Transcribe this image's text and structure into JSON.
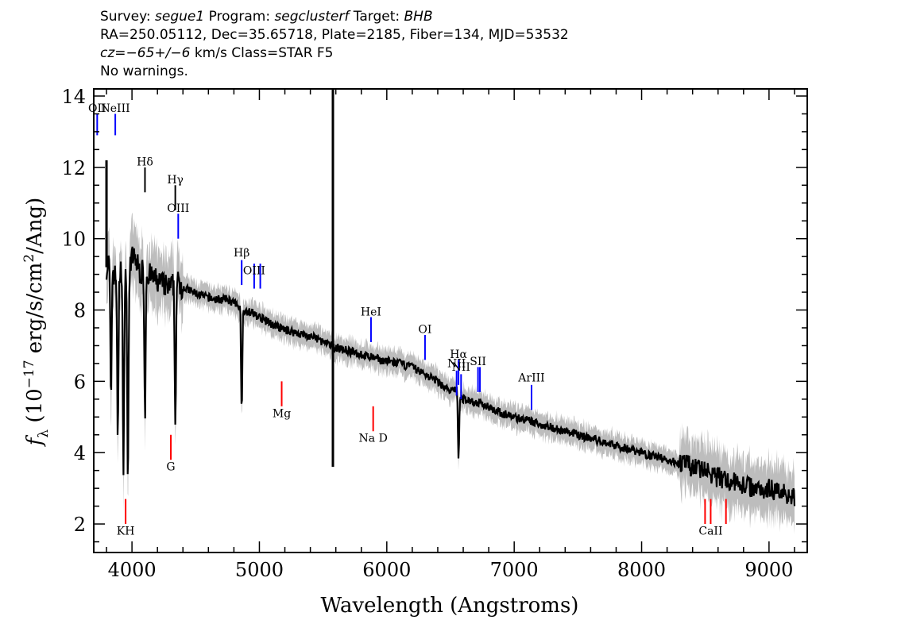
{
  "header": {
    "line1": {
      "survey_label": "Survey: ",
      "survey": "segue1",
      "program_label": " Program: ",
      "program": "segclusterf",
      "target_label": " Target: ",
      "target": "BHB"
    },
    "line2": "RA=250.05112, Dec=35.65718, Plate=2185, Fiber=134, MJD=53532",
    "line3": {
      "cz_label": "cz",
      "cz_value": "=−65+/−6",
      "rest": " km/s Class=STAR F5"
    },
    "line4": "No warnings."
  },
  "chart_data": {
    "type": "line",
    "xlabel": "Wavelength (Angstroms)",
    "ylabel": "fλ (10⁻¹⁷ erg/s/cm²/Ang)",
    "ylabel_parts": {
      "f": "f",
      "lambda": "λ",
      "open": " (10",
      "exp1": "−17",
      "mid": " erg/s/cm",
      "exp2": "2",
      "close": "/Ang)"
    },
    "xlim": [
      3700,
      9300
    ],
    "ylim": [
      1.2,
      14.2
    ],
    "xticks": [
      4000,
      5000,
      6000,
      7000,
      8000,
      9000
    ],
    "yticks": [
      2,
      4,
      6,
      8,
      10,
      12,
      14
    ],
    "x_minor_step": 200,
    "y_minor_step": 0.5,
    "series": [
      {
        "color": "#000000",
        "x": [
          3800,
          3830,
          3860,
          3890,
          3920,
          3950,
          3980,
          4010,
          4040,
          4070,
          4100,
          4130,
          4160,
          4200,
          4250,
          4300,
          4340,
          4380,
          4420,
          4480,
          4550,
          4650,
          4750,
          4800,
          4830,
          4860,
          4880,
          4950,
          5050,
          5150,
          5250,
          5350,
          5450,
          5550,
          5650,
          5750,
          5850,
          5950,
          6100,
          6200,
          6300,
          6400,
          6500,
          6550,
          6562,
          6580,
          6620,
          6700,
          6800,
          6900,
          7000,
          7100,
          7200,
          7300,
          7400,
          7500,
          7600,
          7700,
          7800,
          7900,
          8000,
          8100,
          8200,
          8300,
          8400,
          8500,
          8600,
          8700,
          8800,
          8900,
          9000,
          9100,
          9200
        ],
        "y": [
          9.2,
          9.4,
          9.0,
          8.8,
          9.2,
          9.0,
          9.3,
          9.5,
          9.3,
          9.0,
          9.2,
          9.0,
          8.9,
          8.8,
          8.7,
          8.6,
          8.8,
          8.7,
          8.6,
          8.5,
          8.4,
          8.3,
          8.3,
          8.2,
          8.1,
          8.2,
          8.0,
          7.9,
          7.7,
          7.5,
          7.4,
          7.3,
          7.2,
          7.0,
          6.9,
          6.8,
          6.7,
          6.6,
          6.5,
          6.4,
          6.2,
          6.0,
          5.7,
          5.8,
          5.6,
          5.5,
          5.5,
          5.4,
          5.3,
          5.1,
          5.0,
          4.9,
          4.8,
          4.7,
          4.6,
          4.5,
          4.4,
          4.3,
          4.2,
          4.1,
          4.0,
          3.9,
          3.8,
          3.7,
          3.6,
          3.5,
          3.3,
          3.2,
          3.1,
          3.0,
          3.0,
          2.9,
          2.8
        ]
      }
    ],
    "absorption_features": [
      {
        "x": 3835,
        "y": 5.3
      },
      {
        "x": 3889,
        "y": 4.4
      },
      {
        "x": 3933,
        "y": 3.1
      },
      {
        "x": 3968,
        "y": 2.9
      },
      {
        "x": 4102,
        "y": 5.1
      },
      {
        "x": 4340,
        "y": 4.8
      },
      {
        "x": 4861,
        "y": 5.2
      },
      {
        "x": 6563,
        "y": 3.9
      }
    ],
    "emission_spikes": [
      {
        "x": 3800,
        "y": 12.2
      },
      {
        "x": 5577,
        "y": 14.2
      },
      {
        "x": 5577,
        "y": 3.6
      }
    ],
    "line_labels": [
      {
        "text": "OII",
        "x": 3727,
        "top": 13.5,
        "bottom": 12.9,
        "color": "blue",
        "label_y": 13.55
      },
      {
        "text": "NeIII",
        "x": 3869,
        "top": 13.5,
        "bottom": 12.9,
        "color": "blue",
        "label_y": 13.55
      },
      {
        "text": "Hδ",
        "x": 4102,
        "top": 12.0,
        "bottom": 11.3,
        "color": "black",
        "label_y": 12.05
      },
      {
        "text": "Hγ",
        "x": 4340,
        "top": 11.5,
        "bottom": 10.8,
        "color": "black",
        "label_y": 11.55
      },
      {
        "text": "OIII",
        "x": 4363,
        "top": 10.7,
        "bottom": 10.0,
        "color": "blue",
        "label_y": 10.75
      },
      {
        "text": "Hβ",
        "x": 4861,
        "top": 9.4,
        "bottom": 8.7,
        "color": "blue",
        "label_y": 9.5
      },
      {
        "text": "OIII",
        "x": 4959,
        "top": 9.3,
        "bottom": 8.6,
        "color": "blue",
        "label_y": 9.0
      },
      {
        "text": "",
        "x": 5007,
        "top": 9.3,
        "bottom": 8.6,
        "color": "blue",
        "label_y": 9.0
      },
      {
        "text": "HeI",
        "x": 5876,
        "top": 7.8,
        "bottom": 7.1,
        "color": "blue",
        "label_y": 7.85
      },
      {
        "text": "OI",
        "x": 6300,
        "top": 7.3,
        "bottom": 6.6,
        "color": "blue",
        "label_y": 7.35
      },
      {
        "text": "NII",
        "x": 6548,
        "top": 6.3,
        "bottom": 5.6,
        "color": "blue",
        "label_y": 6.4
      },
      {
        "text": "Hα",
        "x": 6563,
        "top": 6.6,
        "bottom": 5.9,
        "color": "blue",
        "label_y": 6.65
      },
      {
        "text": "NII",
        "x": 6583,
        "top": 6.2,
        "bottom": 5.5,
        "color": "blue",
        "label_y": 6.3
      },
      {
        "text": "SII",
        "x": 6716,
        "top": 6.4,
        "bottom": 5.7,
        "color": "blue",
        "label_y": 6.45
      },
      {
        "text": "",
        "x": 6731,
        "top": 6.4,
        "bottom": 5.7,
        "color": "blue",
        "label_y": 6.45
      },
      {
        "text": "ArIII",
        "x": 7136,
        "top": 5.9,
        "bottom": 5.2,
        "color": "blue",
        "label_y": 6.0
      },
      {
        "text": "Mg",
        "x": 5175,
        "top": 6.0,
        "bottom": 5.3,
        "color": "red",
        "label_y": 5.0
      },
      {
        "text": "Na D",
        "x": 5893,
        "top": 5.3,
        "bottom": 4.6,
        "color": "red",
        "label_y": 4.3
      },
      {
        "text": "G",
        "x": 4305,
        "top": 4.5,
        "bottom": 3.8,
        "color": "red",
        "label_y": 3.5
      },
      {
        "text": "KH",
        "x": 3950,
        "top": 2.7,
        "bottom": 2.0,
        "color": "red",
        "label_y": 1.7
      },
      {
        "text": "CaII",
        "x": 8542,
        "top": 2.7,
        "bottom": 2.0,
        "color": "red",
        "label_y": 1.7
      },
      {
        "text": "",
        "x": 8498,
        "top": 2.7,
        "bottom": 2.0,
        "color": "red",
        "label_y": 1.7
      },
      {
        "text": "",
        "x": 8662,
        "top": 2.7,
        "bottom": 2.0,
        "color": "red",
        "label_y": 1.7
      }
    ],
    "colors": {
      "flux": "#000000",
      "noise": "#bdbdbd",
      "emission_marker": "#0000ff",
      "absorption_marker": "#ff0000",
      "balmer_marker": "#000000"
    },
    "grid": false
  }
}
